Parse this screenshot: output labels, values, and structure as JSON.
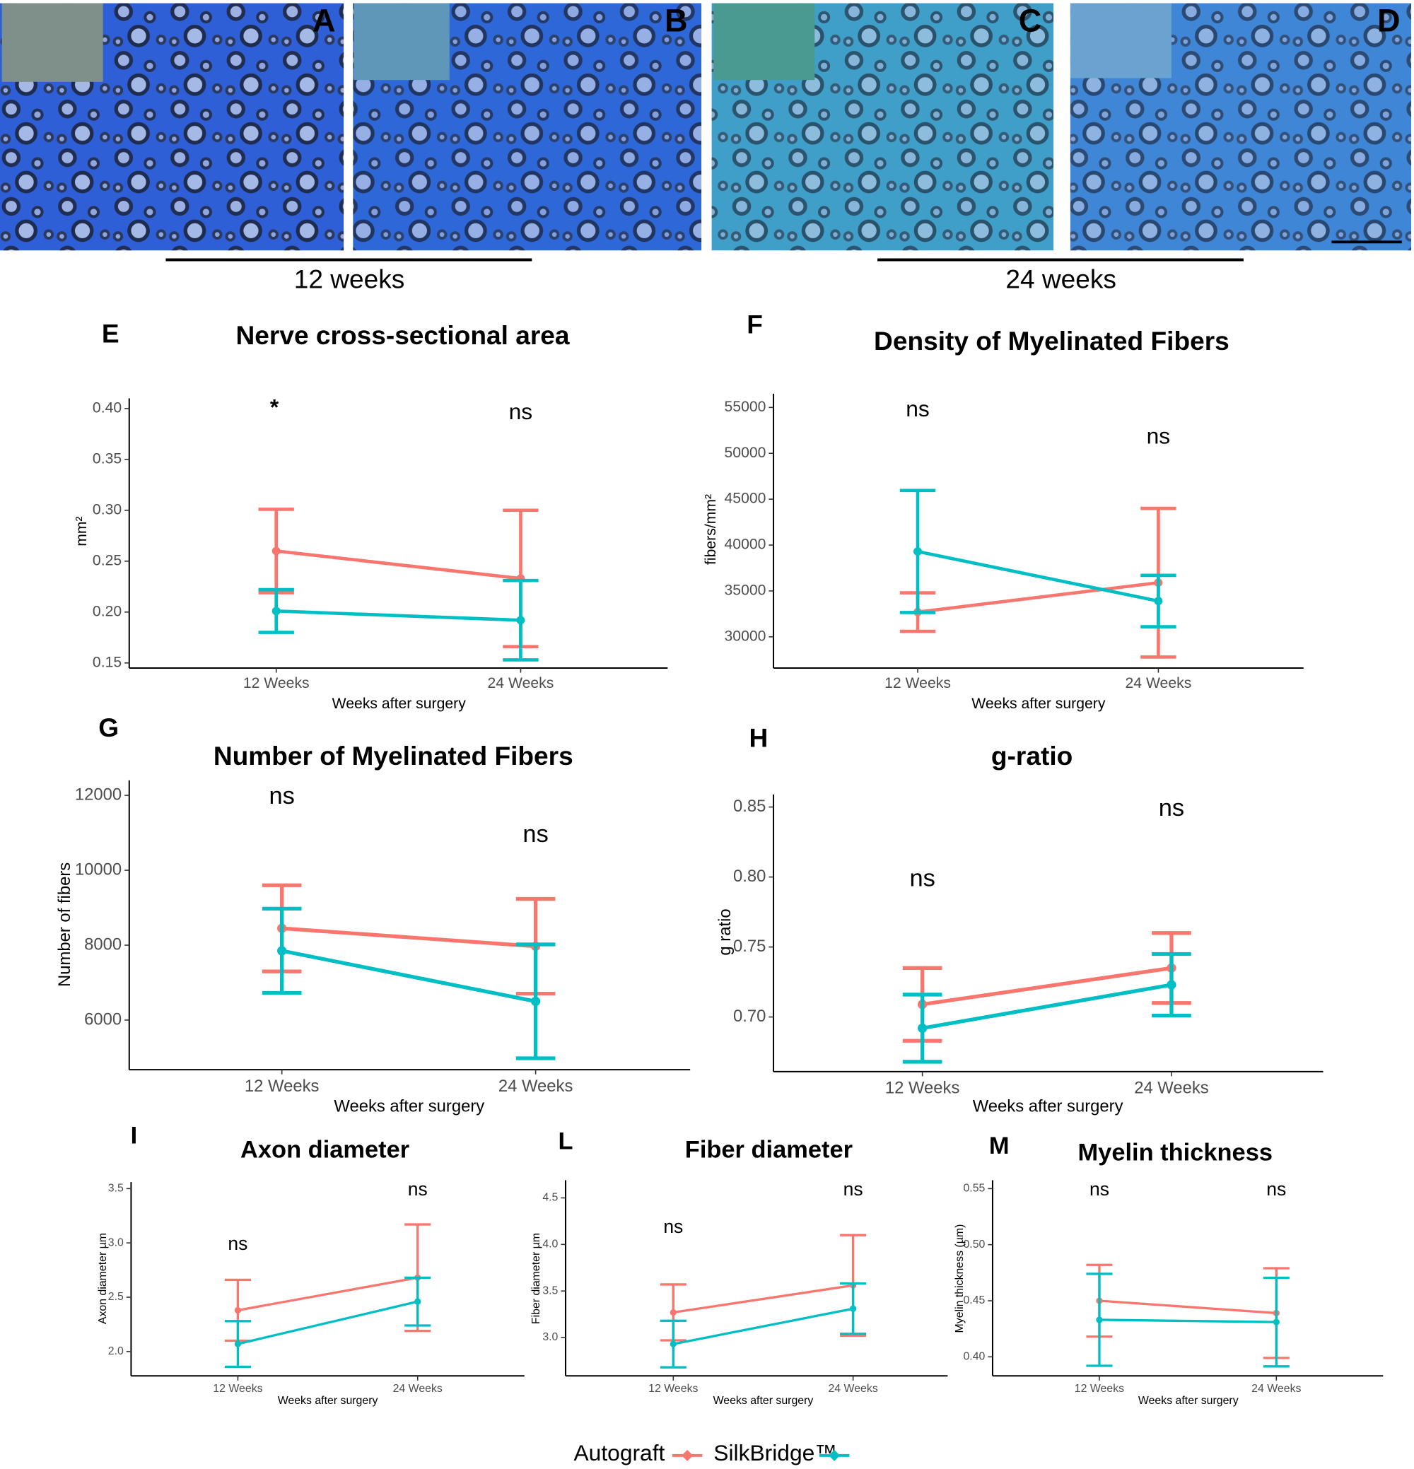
{
  "figure": {
    "micrographs": {
      "panels": [
        "A",
        "B",
        "C",
        "D"
      ],
      "groups": [
        "12 weeks",
        "24 weeks"
      ]
    }
  },
  "chart_data": [
    {
      "type": "line",
      "panel": "E",
      "title": "Nerve cross-sectional area",
      "ylabel": "mm²",
      "xlabel": "Weeks after surgery",
      "categories": [
        "12 Weeks",
        "24 Weeks"
      ],
      "annotations": [
        "*",
        "ns"
      ],
      "ylim": [
        0.145,
        0.41
      ],
      "yticks": [
        0.15,
        {
          "value": 0.2,
          "label": "0.20"
        },
        0.25,
        {
          "value": 0.3,
          "label": "0.30"
        },
        0.35,
        {
          "value": 0.4,
          "label": "0.40"
        }
      ],
      "series": [
        {
          "name": "Autograft",
          "color": "#F8766D",
          "values": [
            0.26,
            0.233
          ],
          "errors": [
            0.041,
            0.067
          ]
        },
        {
          "name": "SilkBridge™",
          "color": "#00BFC4",
          "values": [
            0.201,
            0.192
          ],
          "errors": [
            0.021,
            0.039
          ]
        }
      ]
    },
    {
      "type": "line",
      "panel": "F",
      "title": "Density of Myelinated Fibers",
      "ylabel": "fibers/mm²",
      "xlabel": "Weeks after surgery",
      "categories": [
        "12 Weeks",
        "24 Weeks"
      ],
      "annotations": [
        "ns",
        "ns"
      ],
      "ylim": [
        26600,
        56500
      ],
      "yticks": [
        30000,
        35000,
        40000,
        45000,
        50000,
        55000
      ],
      "series": [
        {
          "name": "Autograft",
          "color": "#F8766D",
          "values": [
            32700,
            35900
          ],
          "errors": [
            2100,
            8100
          ]
        },
        {
          "name": "SilkBridge™",
          "color": "#00BFC4",
          "values": [
            39300,
            33900
          ],
          "errors": [
            6650,
            2800
          ]
        }
      ]
    },
    {
      "type": "line",
      "panel": "G",
      "title": "Number of Myelinated Fibers",
      "ylabel": "Number of fibers",
      "xlabel": "Weeks after surgery",
      "categories": [
        "12 Weeks",
        "24 Weeks"
      ],
      "annotations": [
        "ns",
        "ns"
      ],
      "ylim": [
        4675,
        12400
      ],
      "yticks": [
        6000,
        8000,
        10000,
        12000
      ],
      "series": [
        {
          "name": "Autograft",
          "color": "#F8766D",
          "values": [
            8450,
            7970
          ],
          "errors": [
            1150,
            1265
          ]
        },
        {
          "name": "SilkBridge™",
          "color": "#00BFC4",
          "values": [
            7850,
            6500
          ],
          "errors": [
            1125,
            1520
          ]
        }
      ]
    },
    {
      "type": "line",
      "panel": "H",
      "title": "g-ratio",
      "ylabel": "g ratio",
      "xlabel": "Weeks after surgery",
      "categories": [
        "12 Weeks",
        "24 Weeks"
      ],
      "annotations": [
        "ns",
        "ns"
      ],
      "ylim": [
        0.661,
        0.859
      ],
      "yticks": [
        {
          "value": 0.7,
          "label": "0.70"
        },
        0.75,
        {
          "value": 0.8,
          "label": "0.80"
        },
        0.85
      ],
      "series": [
        {
          "name": "Autograft",
          "color": "#F8766D",
          "values": [
            0.709,
            0.735
          ],
          "errors": [
            0.026,
            0.025
          ]
        },
        {
          "name": "SilkBridge™",
          "color": "#00BFC4",
          "values": [
            0.692,
            0.723
          ],
          "errors": [
            0.024,
            0.022
          ]
        }
      ]
    },
    {
      "type": "line",
      "panel": "I",
      "title": "Axon diameter",
      "ylabel": "Axon diameter µm",
      "xlabel": "Weeks after surgery",
      "categories": [
        "12 Weeks",
        "24 Weeks"
      ],
      "annotations": [
        "ns",
        "ns"
      ],
      "ylim": [
        1.776,
        3.56
      ],
      "yticks": [
        {
          "value": 2,
          "label": "2.0"
        },
        2.5,
        {
          "value": 3,
          "label": "3.0"
        },
        3.5
      ],
      "series": [
        {
          "name": "Autograft",
          "color": "#F8766D",
          "values": [
            2.38,
            2.68
          ],
          "errors": [
            0.28,
            0.49
          ]
        },
        {
          "name": "SilkBridge™",
          "color": "#00BFC4",
          "values": [
            2.07,
            2.46
          ],
          "errors": [
            0.21,
            0.22
          ]
        }
      ]
    },
    {
      "type": "line",
      "panel": "L",
      "title": "Fiber diameter",
      "ylabel": "Fiber diameter µm",
      "xlabel": "Weeks after surgery",
      "categories": [
        "12 Weeks",
        "24 Weeks"
      ],
      "annotations": [
        "ns",
        "ns"
      ],
      "ylim": [
        2.588,
        4.69
      ],
      "yticks": [
        {
          "value": 3,
          "label": "3.0"
        },
        3.5,
        {
          "value": 4,
          "label": "4.0"
        },
        4.5
      ],
      "series": [
        {
          "name": "Autograft",
          "color": "#F8766D",
          "values": [
            3.27,
            3.56
          ],
          "errors": [
            0.3,
            0.54
          ]
        },
        {
          "name": "SilkBridge™",
          "color": "#00BFC4",
          "values": [
            2.93,
            3.31
          ],
          "errors": [
            0.25,
            0.27
          ]
        }
      ]
    },
    {
      "type": "line",
      "panel": "M",
      "title": "Myelin thickness",
      "ylabel": "Myelin thickness (µm)",
      "xlabel": "Weeks after surgery",
      "categories": [
        "12 Weeks",
        "24 Weeks"
      ],
      "annotations": [
        "ns",
        "ns"
      ],
      "ylim": [
        0.383,
        0.5575
      ],
      "yticks": [
        {
          "value": 0.4,
          "label": "0.40"
        },
        0.45,
        {
          "value": 0.5,
          "label": "0.50"
        },
        0.55
      ],
      "series": [
        {
          "name": "Autograft",
          "color": "#F8766D",
          "values": [
            0.45,
            0.439
          ],
          "errors": [
            0.032,
            0.04
          ]
        },
        {
          "name": "SilkBridge™",
          "color": "#00BFC4",
          "values": [
            0.433,
            0.431
          ],
          "errors": [
            0.041,
            0.0395
          ]
        }
      ]
    }
  ]
}
